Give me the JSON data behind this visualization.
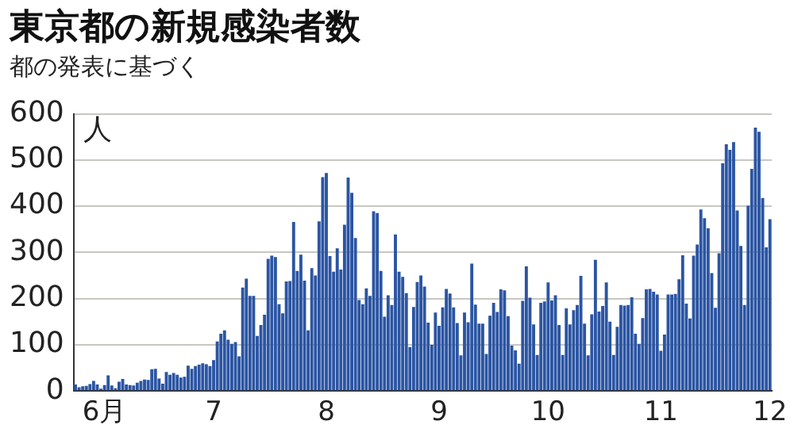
{
  "chart_data": {
    "type": "bar",
    "title": "東京都の新規感染者数",
    "subtitle": "都の発表に基づく",
    "ylabel": "人",
    "categories": [
      null,
      null,
      null,
      null,
      null,
      null,
      null,
      null,
      "6月",
      null,
      null,
      null,
      null,
      null,
      null,
      null,
      null,
      null,
      null,
      null,
      null,
      null,
      null,
      null,
      null,
      null,
      null,
      null,
      null,
      null,
      null,
      null,
      null,
      null,
      null,
      null,
      null,
      null,
      "7",
      null,
      null,
      null,
      null,
      null,
      null,
      null,
      null,
      null,
      null,
      null,
      null,
      null,
      null,
      null,
      null,
      null,
      null,
      null,
      null,
      null,
      null,
      null,
      null,
      null,
      null,
      null,
      null,
      null,
      null,
      "8",
      null,
      null,
      null,
      null,
      null,
      null,
      null,
      null,
      null,
      null,
      null,
      null,
      null,
      null,
      null,
      null,
      null,
      null,
      null,
      null,
      null,
      null,
      null,
      null,
      null,
      null,
      null,
      null,
      null,
      null,
      "9",
      null,
      null,
      null,
      null,
      null,
      null,
      null,
      null,
      null,
      null,
      null,
      null,
      null,
      null,
      null,
      null,
      null,
      null,
      null,
      null,
      null,
      null,
      null,
      null,
      null,
      null,
      null,
      null,
      null,
      "10",
      null,
      null,
      null,
      null,
      null,
      null,
      null,
      null,
      null,
      null,
      null,
      null,
      null,
      null,
      null,
      null,
      null,
      null,
      null,
      null,
      null,
      null,
      null,
      null,
      null,
      null,
      null,
      null,
      null,
      null,
      "11",
      null,
      null,
      null,
      null,
      null,
      null,
      null,
      null,
      null,
      null,
      null,
      null,
      null,
      null,
      null,
      null,
      null,
      null,
      null,
      null,
      null,
      null,
      null,
      null,
      null,
      null,
      null,
      null,
      null,
      "12"
    ],
    "values": [
      14,
      8,
      10,
      11,
      15,
      22,
      14,
      5,
      13,
      34,
      12,
      6,
      20,
      26,
      14,
      13,
      12,
      18,
      22,
      25,
      24,
      47,
      48,
      27,
      16,
      41,
      35,
      39,
      35,
      29,
      31,
      55,
      48,
      54,
      57,
      60,
      58,
      54,
      67,
      107,
      124,
      131,
      111,
      102,
      106,
      75,
      224,
      243,
      206,
      206,
      119,
      143,
      165,
      286,
      293,
      290,
      188,
      168,
      237,
      238,
      366,
      260,
      295,
      239,
      131,
      266,
      250,
      367,
      463,
      472,
      292,
      258,
      309,
      263,
      360,
      462,
      429,
      331,
      197,
      188,
      222,
      206,
      389,
      385,
      260,
      161,
      207,
      186,
      339,
      258,
      247,
      212,
      95,
      182,
      236,
      250,
      226,
      148,
      100,
      170,
      141,
      181,
      221,
      211,
      181,
      147,
      77,
      170,
      149,
      276,
      187,
      146,
      146,
      80,
      163,
      191,
      171,
      220,
      218,
      162,
      98,
      88,
      59,
      195,
      270,
      202,
      144,
      78,
      191,
      194,
      235,
      196,
      207,
      143,
      78,
      179,
      144,
      175,
      186,
      249,
      146,
      77,
      166,
      284,
      172,
      184,
      235,
      150,
      78,
      139,
      186,
      185,
      186,
      203,
      124,
      102,
      158,
      220,
      221,
      215,
      209,
      87,
      122,
      209,
      209,
      210,
      242,
      294,
      189,
      157,
      293,
      317,
      393,
      374,
      352,
      255,
      180,
      298,
      493,
      534,
      522,
      539,
      391,
      314,
      186,
      401,
      481,
      570,
      561,
      418,
      311,
      372
    ],
    "color": "#2b55a3",
    "ylim": [
      0,
      600
    ],
    "yticks": [
      0,
      100,
      200,
      300,
      400,
      500,
      600
    ],
    "grid": "y"
  }
}
